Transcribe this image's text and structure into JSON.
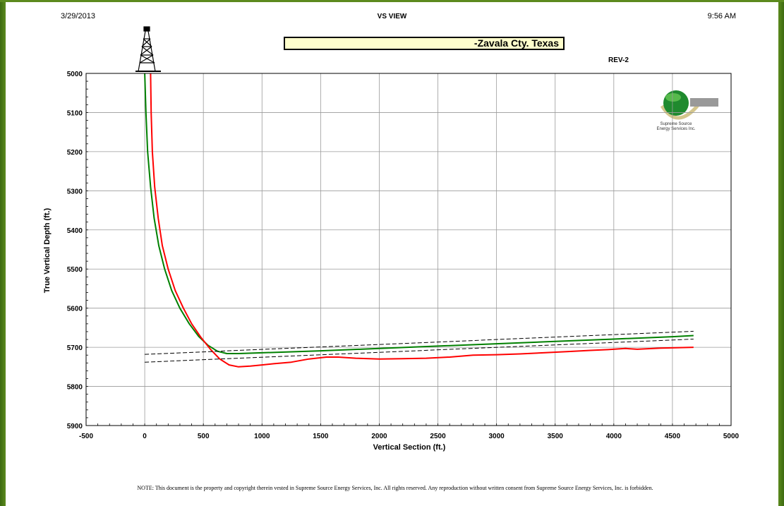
{
  "header": {
    "date": "3/29/2013",
    "title": "VS VIEW",
    "time": "9:56 AM"
  },
  "well_name": "-Zavala Cty. Texas",
  "revision": "REV-2",
  "logo": {
    "company_text_line1": "Supreme Source",
    "company_text_line2": "Energy Services Inc."
  },
  "footer_note": "NOTE: This document is the property and copyright therein vested in Supreme Source Energy Services, Inc. All rights reserved. Any reproduction without written consent from Supreme Source Energy Services, Inc. is forbidden.",
  "colors": {
    "border_green": "#5c8a1e",
    "plan_line": "#008000",
    "actual_line": "#ff0000",
    "target_line": "#000000",
    "title_box": "#ffffcc"
  },
  "chart_data": {
    "type": "line",
    "xlabel": "Vertical Section (ft.)",
    "ylabel": "True Vertical Depth (ft.)",
    "xlim": [
      -500,
      5000
    ],
    "ylim": [
      5000,
      5900
    ],
    "y_inverted": true,
    "x_ticks": [
      -500,
      0,
      500,
      1000,
      1500,
      2000,
      2500,
      3000,
      3500,
      4000,
      4500,
      5000
    ],
    "y_ticks": [
      5000,
      5100,
      5200,
      5300,
      5400,
      5500,
      5600,
      5700,
      5800,
      5900
    ],
    "grid": true,
    "series": [
      {
        "style": "solid",
        "color": "#008000",
        "x": [
          0,
          10,
          25,
          50,
          80,
          120,
          170,
          230,
          300,
          380,
          460,
          540,
          620,
          700,
          800,
          1000,
          1500,
          2000,
          2500,
          3000,
          3500,
          4000,
          4500,
          4680
        ],
        "y": [
          5000,
          5100,
          5200,
          5290,
          5370,
          5440,
          5500,
          5555,
          5600,
          5640,
          5672,
          5695,
          5710,
          5716,
          5716,
          5714,
          5709,
          5703,
          5697,
          5691,
          5685,
          5679,
          5673,
          5670
        ]
      },
      {
        "style": "solid",
        "color": "#ff0000",
        "x": [
          50,
          55,
          65,
          85,
          115,
          150,
          200,
          260,
          330,
          400,
          480,
          560,
          640,
          720,
          800,
          900,
          1000,
          1100,
          1250,
          1400,
          1550,
          1650,
          1800,
          2000,
          2200,
          2400,
          2600,
          2800,
          3000,
          3200,
          3400,
          3600,
          3800,
          3950,
          4100,
          4200,
          4400,
          4680
        ],
        "y": [
          5000,
          5100,
          5200,
          5290,
          5370,
          5440,
          5500,
          5555,
          5600,
          5640,
          5675,
          5705,
          5730,
          5745,
          5750,
          5748,
          5745,
          5742,
          5738,
          5730,
          5725,
          5725,
          5728,
          5730,
          5729,
          5728,
          5725,
          5720,
          5719,
          5717,
          5714,
          5711,
          5708,
          5706,
          5703,
          5705,
          5702,
          5700
        ]
      },
      {
        "style": "dashed",
        "color": "#000000",
        "x": [
          0,
          4680
        ],
        "y": [
          5718,
          5659
        ]
      },
      {
        "style": "dashed",
        "color": "#000000",
        "x": [
          0,
          4680
        ],
        "y": [
          5738,
          5679
        ]
      }
    ]
  }
}
